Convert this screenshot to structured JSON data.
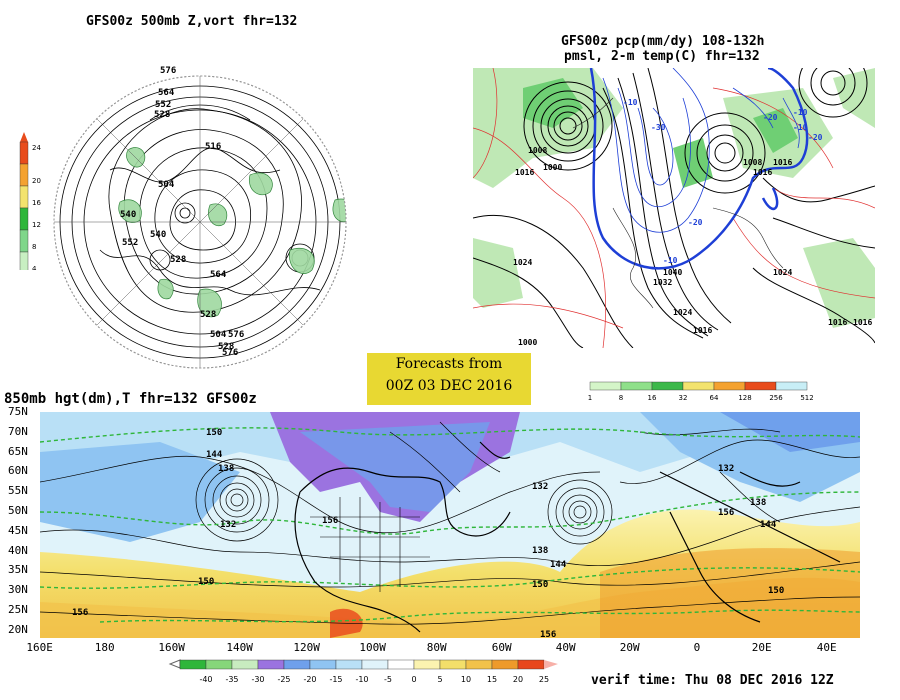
{
  "titles": {
    "polar": "GFS00z   500mb Z,vort    fhr=132",
    "precip_line1": "GFS00z pcp(mm/dy) 108-132h",
    "precip_line2": "pmsl, 2-m temp(C)  fhr=132",
    "main": "850mb hgt(dm),T  fhr=132 GFS00z"
  },
  "forecast_box": {
    "line1": "Forecasts from",
    "line2": "00Z 03 DEC 2016"
  },
  "verif_time": "verif time: Thu 08 DEC 2016 12Z",
  "vort_scale": {
    "labels": [
      "24",
      "20",
      "16",
      "12",
      "8",
      "4"
    ],
    "colors": [
      "#e84c1c",
      "#f4a230",
      "#f3e36e",
      "#2fb63a",
      "#7fd68a",
      "#c8efc2"
    ]
  },
  "precip_scale": {
    "labels": [
      "1",
      "8",
      "16",
      "32",
      "64",
      "128",
      "256",
      "512"
    ],
    "colors": [
      "#d4f5c8",
      "#8fe08a",
      "#3cb84a",
      "#f3e36e",
      "#f4a230",
      "#e84c1c",
      "#c8eef6"
    ]
  },
  "temp_scale": {
    "labels": [
      "-40",
      "-35",
      "-30",
      "-25",
      "-20",
      "-15",
      "-10",
      "-5",
      "0",
      "5",
      "10",
      "15",
      "20",
      "25"
    ],
    "colors": [
      "#2fb63a",
      "#86d67a",
      "#c8ecc0",
      "#9b73e0",
      "#6fa0ec",
      "#8fc4f2",
      "#b9e0f6",
      "#e0f3fa",
      "#ffffff",
      "#fbf3b0",
      "#f3df6a",
      "#f2c24a",
      "#ee9a2a",
      "#e8461c"
    ]
  },
  "polar_contours": [
    "576",
    "564",
    "552",
    "528",
    "516",
    "504",
    "540",
    "552",
    "540",
    "528",
    "564",
    "576",
    "576",
    "528",
    "504",
    "528"
  ],
  "precip_labels": [
    "1000",
    "1008",
    "1016",
    "1024",
    "1032",
    "1040",
    "1016",
    "1024",
    "1016",
    "-10",
    "-20",
    "-30",
    "-10",
    "-20",
    "-10",
    "-10",
    "-20",
    "1008",
    "1016",
    "1024",
    "1016",
    "1000",
    "1016"
  ],
  "main_map": {
    "lat_labels": [
      "75N",
      "70N",
      "65N",
      "60N",
      "55N",
      "50N",
      "45N",
      "40N",
      "35N",
      "30N",
      "25N",
      "20N"
    ],
    "lon_labels": [
      "160E",
      "180",
      "160W",
      "140W",
      "120W",
      "100W",
      "80W",
      "60W",
      "40W",
      "20W",
      "0",
      "20E",
      "40E"
    ],
    "contour_labels": [
      "150",
      "144",
      "138",
      "132",
      "156",
      "132",
      "138",
      "144",
      "150",
      "156",
      "150",
      "156",
      "132",
      "138",
      "156",
      "144",
      "150"
    ]
  }
}
